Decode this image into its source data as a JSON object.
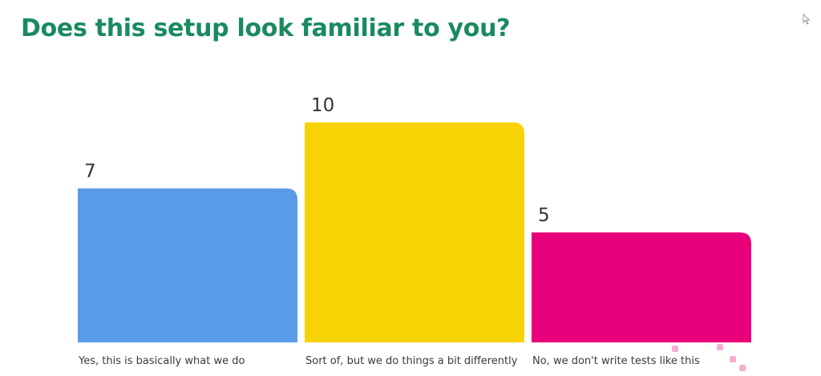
{
  "title": "Does this setup look familiar to you?",
  "chart_data": {
    "type": "bar",
    "title": "Does this setup look familiar to you?",
    "categories": [
      "Yes, this is basically what we do",
      "Sort of, but we do things a bit differently",
      "No, we don't write tests like this"
    ],
    "values": [
      7,
      10,
      5
    ],
    "colors": [
      "#5a9be8",
      "#f5d305",
      "#e8007a"
    ],
    "ylim": [
      0,
      10
    ],
    "grid": false,
    "legend": "none"
  },
  "colors": {
    "title": "#1a8a5f",
    "background": "#ffffff"
  },
  "icons": {
    "cursor": "mouse-pointer-icon"
  }
}
